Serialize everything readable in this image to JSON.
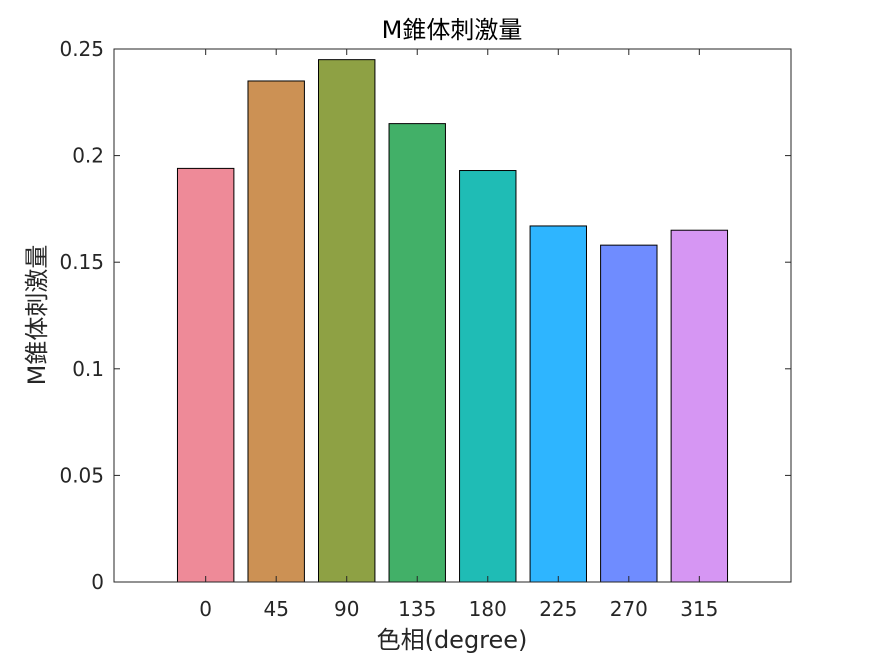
{
  "chart_data": {
    "type": "bar",
    "title": "M錐体刺激量",
    "xlabel": "色相(degree)",
    "ylabel": "M錐体刺激量",
    "categories": [
      "0",
      "45",
      "90",
      "135",
      "180",
      "225",
      "270",
      "315"
    ],
    "values": [
      0.194,
      0.235,
      0.245,
      0.215,
      0.193,
      0.167,
      0.158,
      0.165
    ],
    "bar_colors": [
      "#ee8a98",
      "#cc9154",
      "#8ea144",
      "#42b068",
      "#1fbcb5",
      "#2eb5ff",
      "#6f8cff",
      "#d696f3"
    ],
    "ylim": [
      0,
      0.25
    ],
    "yticks": [
      "0",
      "0.05",
      "0.1",
      "0.15",
      "0.2",
      "0.25"
    ],
    "grid": false,
    "legend": "none"
  }
}
